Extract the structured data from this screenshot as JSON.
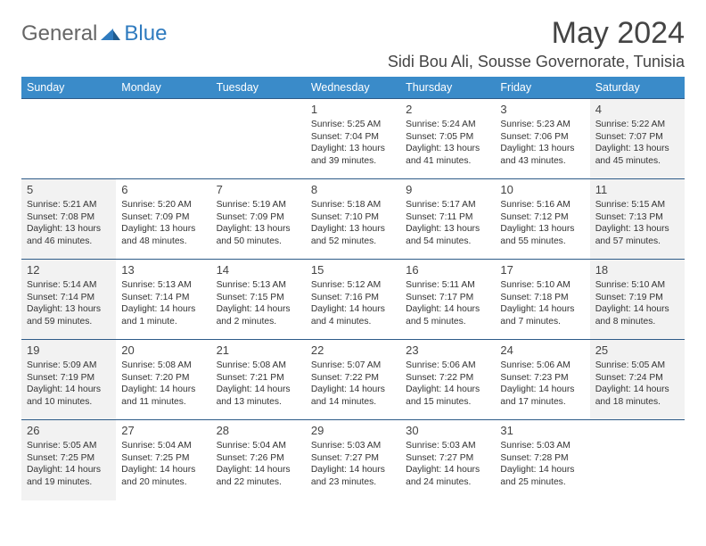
{
  "brand": {
    "part1": "General",
    "part2": "Blue"
  },
  "title": "May 2024",
  "location": "Sidi Bou Ali, Sousse Governorate, Tunisia",
  "colors": {
    "header_bg": "#3a8bc9",
    "header_text": "#ffffff",
    "grid_line": "#2e5b88",
    "weekend_bg": "#f2f2f2",
    "page_bg": "#ffffff",
    "text": "#333333"
  },
  "weekdays": [
    "Sunday",
    "Monday",
    "Tuesday",
    "Wednesday",
    "Thursday",
    "Friday",
    "Saturday"
  ],
  "weeks": [
    [
      null,
      null,
      null,
      {
        "n": "1",
        "sr": "Sunrise: 5:25 AM",
        "ss": "Sunset: 7:04 PM",
        "d1": "Daylight: 13 hours",
        "d2": "and 39 minutes."
      },
      {
        "n": "2",
        "sr": "Sunrise: 5:24 AM",
        "ss": "Sunset: 7:05 PM",
        "d1": "Daylight: 13 hours",
        "d2": "and 41 minutes."
      },
      {
        "n": "3",
        "sr": "Sunrise: 5:23 AM",
        "ss": "Sunset: 7:06 PM",
        "d1": "Daylight: 13 hours",
        "d2": "and 43 minutes."
      },
      {
        "n": "4",
        "sr": "Sunrise: 5:22 AM",
        "ss": "Sunset: 7:07 PM",
        "d1": "Daylight: 13 hours",
        "d2": "and 45 minutes."
      }
    ],
    [
      {
        "n": "5",
        "sr": "Sunrise: 5:21 AM",
        "ss": "Sunset: 7:08 PM",
        "d1": "Daylight: 13 hours",
        "d2": "and 46 minutes."
      },
      {
        "n": "6",
        "sr": "Sunrise: 5:20 AM",
        "ss": "Sunset: 7:09 PM",
        "d1": "Daylight: 13 hours",
        "d2": "and 48 minutes."
      },
      {
        "n": "7",
        "sr": "Sunrise: 5:19 AM",
        "ss": "Sunset: 7:09 PM",
        "d1": "Daylight: 13 hours",
        "d2": "and 50 minutes."
      },
      {
        "n": "8",
        "sr": "Sunrise: 5:18 AM",
        "ss": "Sunset: 7:10 PM",
        "d1": "Daylight: 13 hours",
        "d2": "and 52 minutes."
      },
      {
        "n": "9",
        "sr": "Sunrise: 5:17 AM",
        "ss": "Sunset: 7:11 PM",
        "d1": "Daylight: 13 hours",
        "d2": "and 54 minutes."
      },
      {
        "n": "10",
        "sr": "Sunrise: 5:16 AM",
        "ss": "Sunset: 7:12 PM",
        "d1": "Daylight: 13 hours",
        "d2": "and 55 minutes."
      },
      {
        "n": "11",
        "sr": "Sunrise: 5:15 AM",
        "ss": "Sunset: 7:13 PM",
        "d1": "Daylight: 13 hours",
        "d2": "and 57 minutes."
      }
    ],
    [
      {
        "n": "12",
        "sr": "Sunrise: 5:14 AM",
        "ss": "Sunset: 7:14 PM",
        "d1": "Daylight: 13 hours",
        "d2": "and 59 minutes."
      },
      {
        "n": "13",
        "sr": "Sunrise: 5:13 AM",
        "ss": "Sunset: 7:14 PM",
        "d1": "Daylight: 14 hours",
        "d2": "and 1 minute."
      },
      {
        "n": "14",
        "sr": "Sunrise: 5:13 AM",
        "ss": "Sunset: 7:15 PM",
        "d1": "Daylight: 14 hours",
        "d2": "and 2 minutes."
      },
      {
        "n": "15",
        "sr": "Sunrise: 5:12 AM",
        "ss": "Sunset: 7:16 PM",
        "d1": "Daylight: 14 hours",
        "d2": "and 4 minutes."
      },
      {
        "n": "16",
        "sr": "Sunrise: 5:11 AM",
        "ss": "Sunset: 7:17 PM",
        "d1": "Daylight: 14 hours",
        "d2": "and 5 minutes."
      },
      {
        "n": "17",
        "sr": "Sunrise: 5:10 AM",
        "ss": "Sunset: 7:18 PM",
        "d1": "Daylight: 14 hours",
        "d2": "and 7 minutes."
      },
      {
        "n": "18",
        "sr": "Sunrise: 5:10 AM",
        "ss": "Sunset: 7:19 PM",
        "d1": "Daylight: 14 hours",
        "d2": "and 8 minutes."
      }
    ],
    [
      {
        "n": "19",
        "sr": "Sunrise: 5:09 AM",
        "ss": "Sunset: 7:19 PM",
        "d1": "Daylight: 14 hours",
        "d2": "and 10 minutes."
      },
      {
        "n": "20",
        "sr": "Sunrise: 5:08 AM",
        "ss": "Sunset: 7:20 PM",
        "d1": "Daylight: 14 hours",
        "d2": "and 11 minutes."
      },
      {
        "n": "21",
        "sr": "Sunrise: 5:08 AM",
        "ss": "Sunset: 7:21 PM",
        "d1": "Daylight: 14 hours",
        "d2": "and 13 minutes."
      },
      {
        "n": "22",
        "sr": "Sunrise: 5:07 AM",
        "ss": "Sunset: 7:22 PM",
        "d1": "Daylight: 14 hours",
        "d2": "and 14 minutes."
      },
      {
        "n": "23",
        "sr": "Sunrise: 5:06 AM",
        "ss": "Sunset: 7:22 PM",
        "d1": "Daylight: 14 hours",
        "d2": "and 15 minutes."
      },
      {
        "n": "24",
        "sr": "Sunrise: 5:06 AM",
        "ss": "Sunset: 7:23 PM",
        "d1": "Daylight: 14 hours",
        "d2": "and 17 minutes."
      },
      {
        "n": "25",
        "sr": "Sunrise: 5:05 AM",
        "ss": "Sunset: 7:24 PM",
        "d1": "Daylight: 14 hours",
        "d2": "and 18 minutes."
      }
    ],
    [
      {
        "n": "26",
        "sr": "Sunrise: 5:05 AM",
        "ss": "Sunset: 7:25 PM",
        "d1": "Daylight: 14 hours",
        "d2": "and 19 minutes."
      },
      {
        "n": "27",
        "sr": "Sunrise: 5:04 AM",
        "ss": "Sunset: 7:25 PM",
        "d1": "Daylight: 14 hours",
        "d2": "and 20 minutes."
      },
      {
        "n": "28",
        "sr": "Sunrise: 5:04 AM",
        "ss": "Sunset: 7:26 PM",
        "d1": "Daylight: 14 hours",
        "d2": "and 22 minutes."
      },
      {
        "n": "29",
        "sr": "Sunrise: 5:03 AM",
        "ss": "Sunset: 7:27 PM",
        "d1": "Daylight: 14 hours",
        "d2": "and 23 minutes."
      },
      {
        "n": "30",
        "sr": "Sunrise: 5:03 AM",
        "ss": "Sunset: 7:27 PM",
        "d1": "Daylight: 14 hours",
        "d2": "and 24 minutes."
      },
      {
        "n": "31",
        "sr": "Sunrise: 5:03 AM",
        "ss": "Sunset: 7:28 PM",
        "d1": "Daylight: 14 hours",
        "d2": "and 25 minutes."
      },
      null
    ]
  ]
}
